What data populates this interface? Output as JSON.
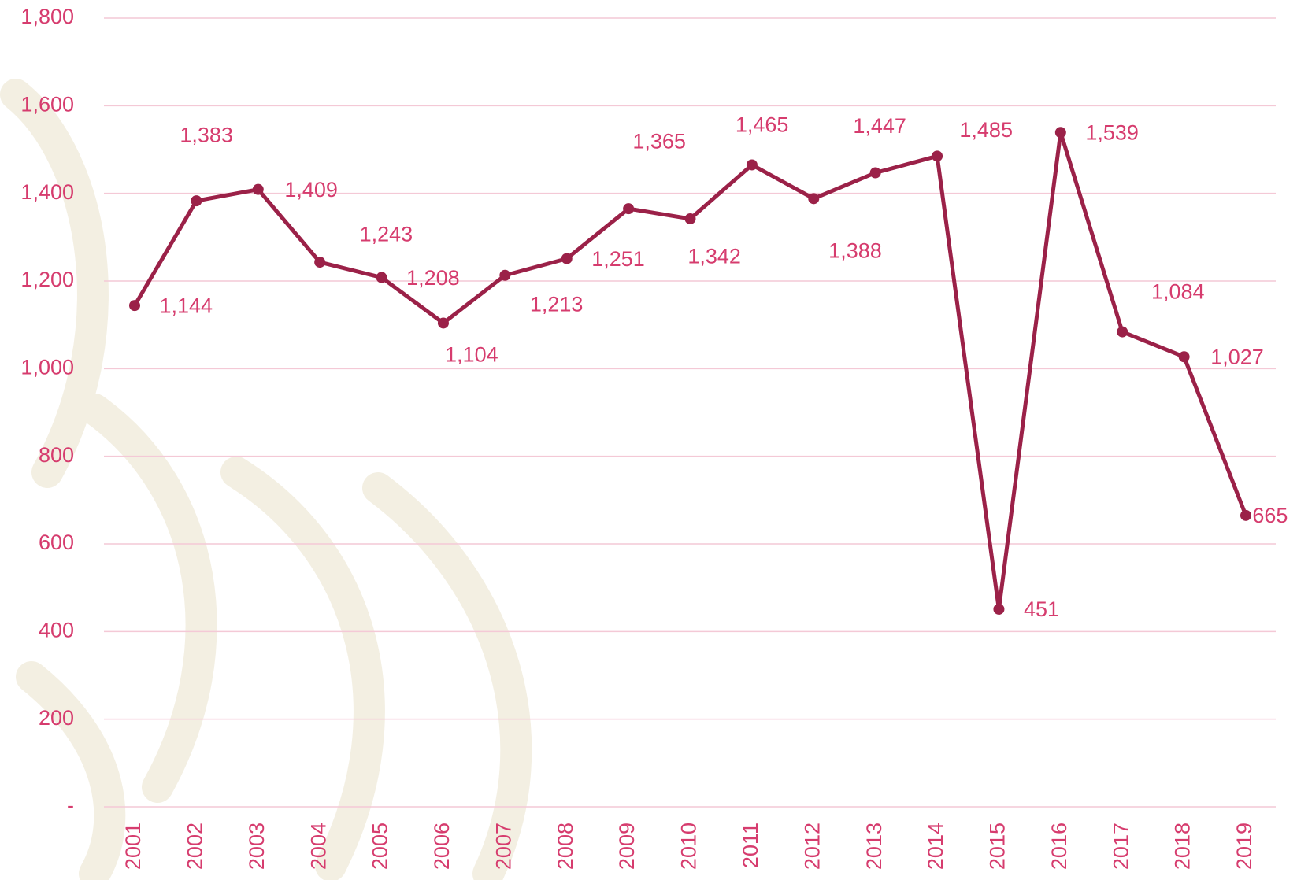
{
  "chart_data": {
    "type": "line",
    "categories": [
      "2001",
      "2002",
      "2003",
      "2004",
      "2005",
      "2006",
      "2007",
      "2008",
      "2009",
      "2010",
      "2011",
      "2012",
      "2013",
      "2014",
      "2015",
      "2016",
      "2017",
      "2018",
      "2019"
    ],
    "series": [
      {
        "color": "#9b2148",
        "values": [
          1144,
          1383,
          1409,
          1243,
          1208,
          1104,
          1213,
          1251,
          1365,
          1342,
          1465,
          1388,
          1447,
          1485,
          451,
          1539,
          1084,
          1027,
          665
        ],
        "value_labels": [
          "1,144",
          "1,383",
          "1,409",
          "1,243",
          "1,208",
          "1,104",
          "1,213",
          "1,251",
          "1,365",
          "1,342",
          "1,465",
          "1,388",
          "1,447",
          "1,485",
          "451",
          "1,539",
          "1,084",
          "1,027",
          "665"
        ]
      }
    ],
    "ylim": [
      0,
      1800
    ],
    "yticks": [
      {
        "value": 0,
        "label": "-"
      },
      200,
      400,
      600,
      800,
      {
        "value": 1000,
        "label": "1,000"
      },
      {
        "value": 1200,
        "label": "1,200"
      },
      {
        "value": 1400,
        "label": "1,400"
      },
      {
        "value": 1600,
        "label": "1,600"
      },
      {
        "value": 1800,
        "label": "1,800"
      }
    ],
    "grid": true
  }
}
